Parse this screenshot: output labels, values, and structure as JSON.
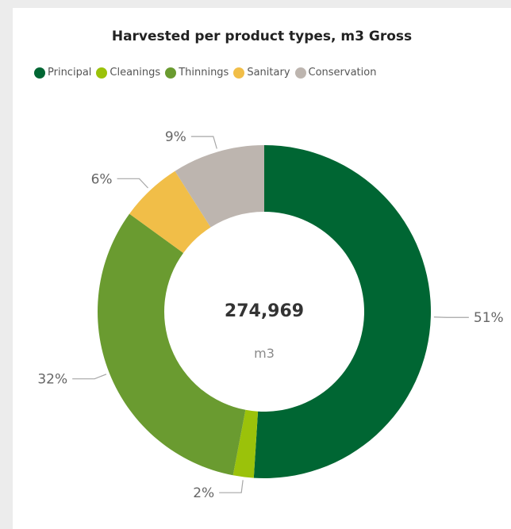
{
  "chart_data": {
    "type": "pie",
    "variant": "donut",
    "title": "Harvested per product types, m3 Gross",
    "categories": [
      "Principal",
      "Cleanings",
      "Thinnings",
      "Sanitary",
      "Conservation"
    ],
    "values": [
      51,
      2,
      32,
      6,
      9
    ],
    "value_labels": [
      "51%",
      "2%",
      "32%",
      "6%",
      "9%"
    ],
    "colors": [
      "#006633",
      "#9bc20a",
      "#6a9b30",
      "#f1be48",
      "#bdb5af"
    ],
    "center_value": "274,969",
    "center_unit": "m3",
    "legend_position": "top"
  }
}
